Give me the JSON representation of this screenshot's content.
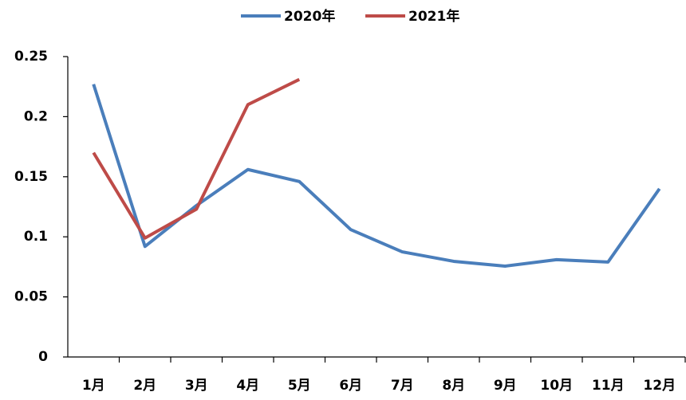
{
  "chart_data": {
    "type": "line",
    "categories": [
      "1月",
      "2月",
      "3月",
      "4月",
      "5月",
      "6月",
      "7月",
      "8月",
      "9月",
      "10月",
      "11月",
      "12月"
    ],
    "series": [
      {
        "name": "2020年",
        "color": "#4a7ebb",
        "values": [
          0.227,
          0.092,
          0.126,
          0.156,
          0.146,
          0.106,
          0.0875,
          0.0796,
          0.0756,
          0.081,
          0.079,
          0.14
        ]
      },
      {
        "name": "2021年",
        "color": "#be4b48",
        "values": [
          0.17,
          0.099,
          0.123,
          0.21,
          0.231,
          null,
          null,
          null,
          null,
          null,
          null,
          null
        ]
      }
    ],
    "ylim": [
      0,
      0.25
    ],
    "yticks": [
      0,
      0.05,
      0.1,
      0.15,
      0.2,
      0.25
    ],
    "grid": false,
    "legend": "top"
  }
}
